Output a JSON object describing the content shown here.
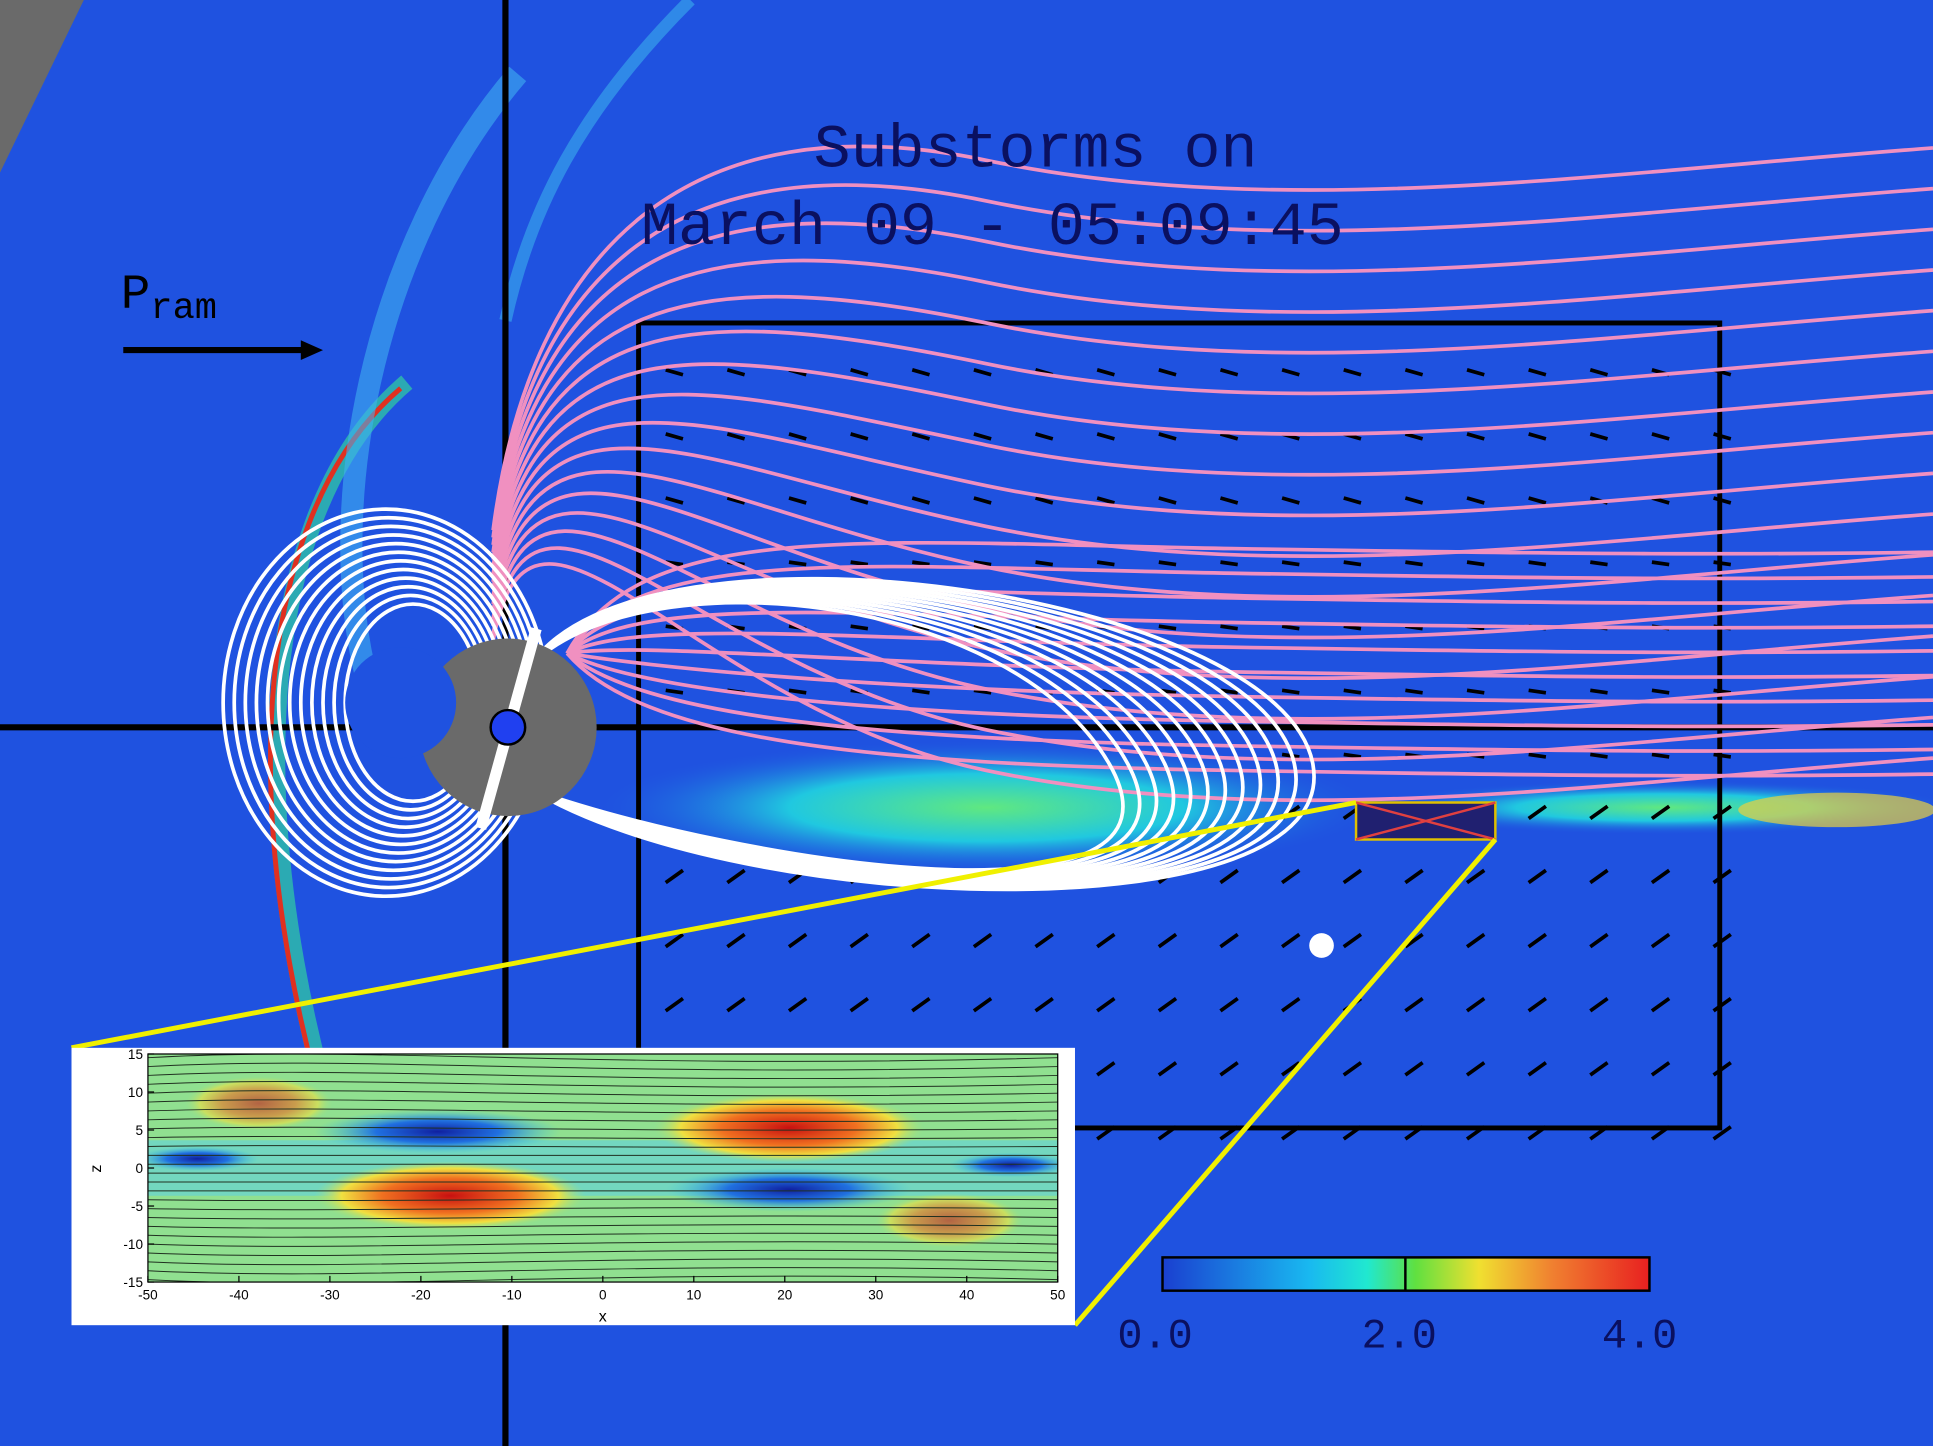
{
  "title": [
    "Substorms on",
    "March 09 - 05:09:45"
  ],
  "pram": {
    "base": "P",
    "sub": "ram"
  },
  "colorbar": {
    "labels": [
      "0.0",
      "2.0",
      "4.0"
    ]
  },
  "inset": {
    "xlabel": "x",
    "ylabel": "z",
    "xticks": [
      -50,
      -40,
      -30,
      -20,
      -10,
      0,
      10,
      20,
      30,
      40,
      50
    ],
    "yticks": [
      15,
      10,
      5,
      0,
      -5,
      -10,
      -15
    ]
  }
}
